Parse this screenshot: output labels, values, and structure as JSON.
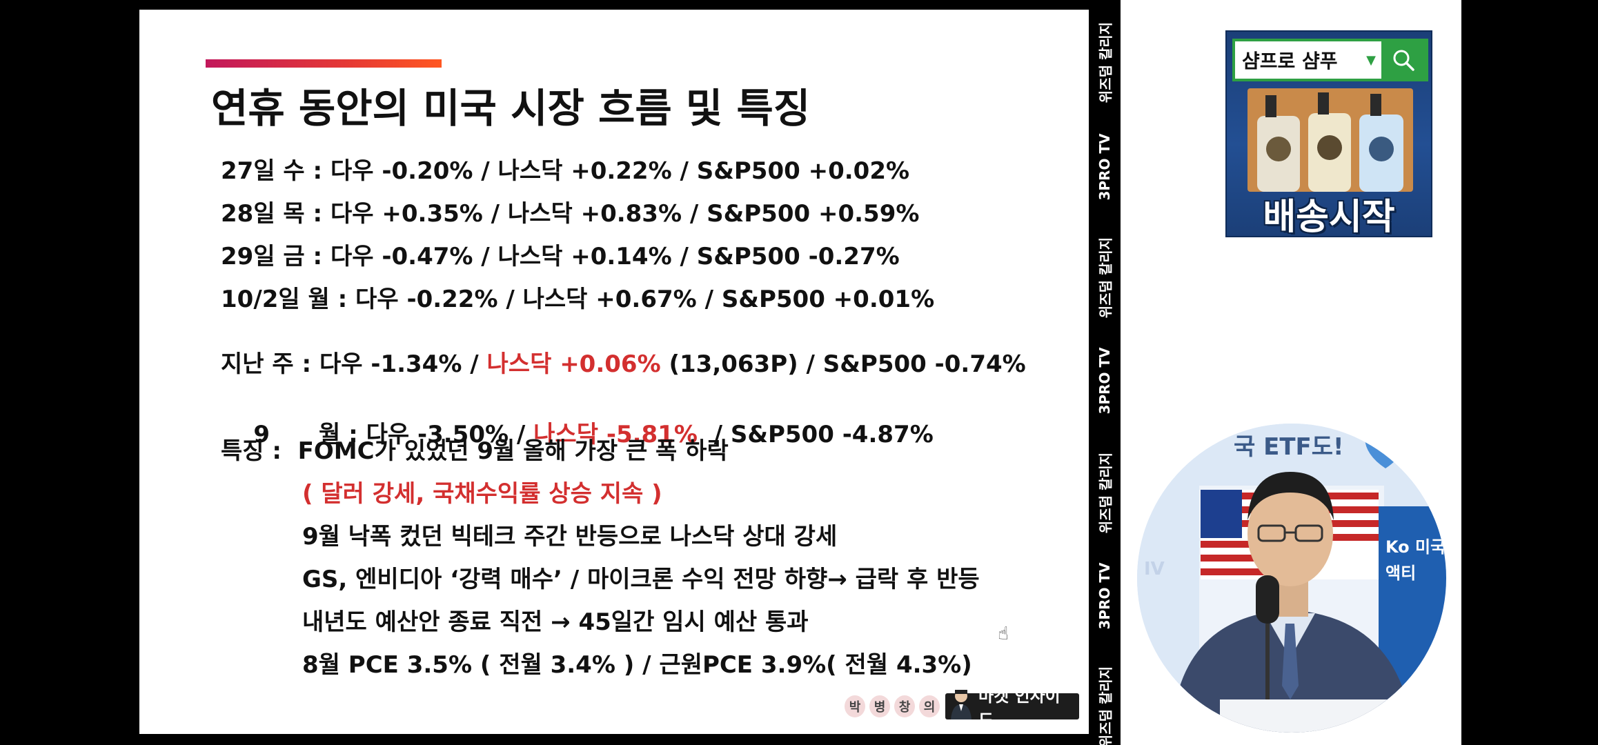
{
  "slide": {
    "title": "연휴 동안의 미국 시장 흐름 및 특징",
    "rows": [
      {
        "text": "27일 수 : 다우 -0.20% / 나스닥 +0.22%  / S&P500 +0.02%"
      },
      {
        "text": "28일 목 : 다우 +0.35% / 나스닥 +0.83%  / S&P500 +0.59%"
      },
      {
        "text": "29일 금 : 다우 -0.47% / 나스닥 +0.14%  / S&P500 -0.27%"
      },
      {
        "text": "10/2일 월 : 다우 -0.22% / 나스닥 +0.67% / S&P500 +0.01%"
      }
    ],
    "weekly": {
      "prefix": "지난 주 : 다우 -1.34% / ",
      "highlight": "나스닥 +0.06%",
      "suffix": " (13,063P) / S&P500 -0.74%"
    },
    "monthly": {
      "prefix": "9      월 : 다우 -3.50% / ",
      "highlight": "나스닥 -5.81%",
      "suffix": "  / S&P500 -4.87%"
    },
    "features_label": "특징 :  FOMC가 있었던 9월 올해 가장 큰 폭 하락",
    "features": [
      {
        "text": "( 달러 강세, 국채수익률 상승 지속 )",
        "red": true
      },
      {
        "text": "9월  낙폭 컸던 빅테크 주간 반등으로 나스닥 상대 강세"
      },
      {
        "text": "GS, 엔비디아 ‘강력 매수’ / 마이크론 수익 전망 하향→ 급락 후 반등"
      },
      {
        "text": "내년도 예산안 종료 직전 → 45일간 임시 예산 통과"
      },
      {
        "text": "8월 PCE 3.5% ( 전월 3.4% ) / 근원PCE 3.9%( 전월 4.3%)"
      }
    ],
    "logo": {
      "name_chars": [
        "박",
        "병",
        "창",
        "의"
      ],
      "show": "마켓 인사이드"
    }
  },
  "side_strip": {
    "labels": [
      "위즈덤 칼리지",
      "3PRO TV",
      "위즈덤 칼리지",
      "3PRO TV",
      "위즈덤 칼리지",
      "3PRO TV",
      "위즈덤 칼리지"
    ]
  },
  "ad": {
    "search_text": "샴프로 샴푸",
    "headline": "배송시작"
  },
  "presenter_bg": {
    "text_top": "국 ETF도!",
    "text_left": "IV",
    "text_right": "Ko 미국 액티"
  },
  "colors": {
    "accent_red": "#d32f2f",
    "ad_green": "#2ea043",
    "ad_navy": "#1b3f78"
  }
}
